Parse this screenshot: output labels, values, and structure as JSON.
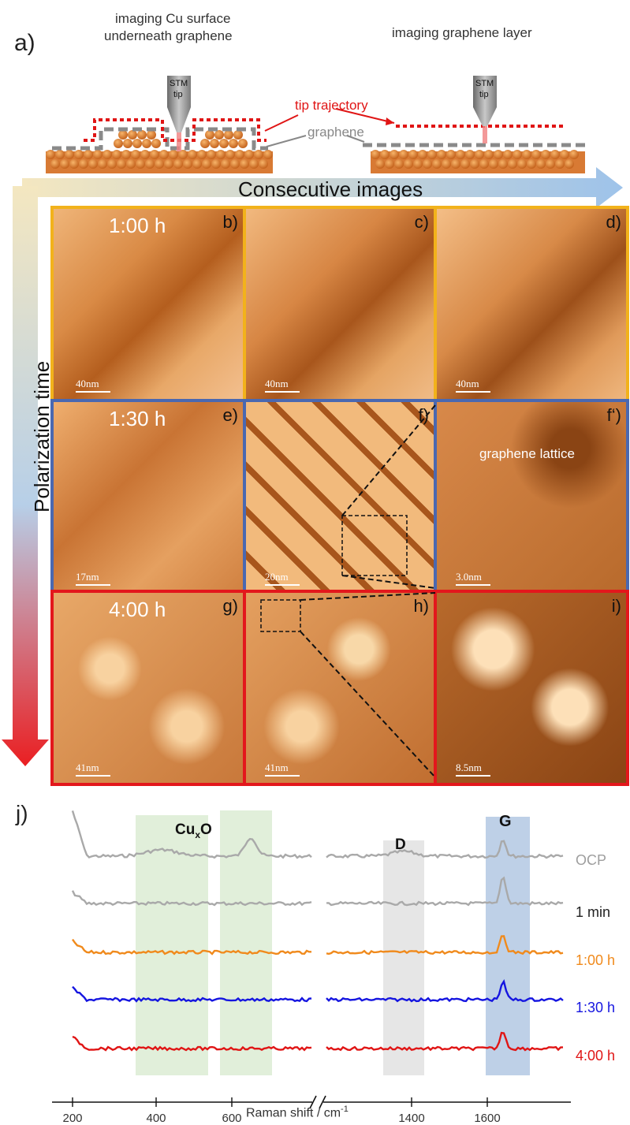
{
  "header": {
    "panel_label": "a)",
    "left_caption_line1": "imaging Cu surface",
    "left_caption_line2": "underneath graphene",
    "right_caption": "imaging graphene layer",
    "tip_label_1": "STM",
    "tip_label_2": "tip",
    "tip_trajectory": "tip trajectory",
    "graphene": "graphene"
  },
  "axes": {
    "consecutive": "Consecutive images",
    "polarization": "Polarization time"
  },
  "rows": [
    {
      "time": "1:00 h",
      "labels": [
        "b)",
        "c)",
        "d)"
      ],
      "scales": [
        "40nm",
        "40nm",
        "40nm"
      ],
      "frame_color": "#f2b21b"
    },
    {
      "time": "1:30 h",
      "labels": [
        "e)",
        "f)",
        "f‘)"
      ],
      "scales": [
        "17nm",
        "20nm",
        "3.0nm"
      ],
      "frame_color": "#4a68b0",
      "annotation": "graphene lattice"
    },
    {
      "time": "4:00 h",
      "labels": [
        "g)",
        "h)",
        "i)"
      ],
      "scales": [
        "41nm",
        "41nm",
        "8.5nm"
      ],
      "frame_color": "#e3171c"
    }
  ],
  "raman": {
    "panel_label": "j)",
    "cuxo_main": "Cu",
    "cuxo_sub": "x",
    "cuxo_tail": "O",
    "d_label": "D",
    "g_label": "G",
    "xlabel_main": "Raman shift / cm",
    "xlabel_sup": "-1",
    "ticks": [
      "200",
      "400",
      "600",
      "1400",
      "1600"
    ],
    "series": [
      {
        "name": "OCP",
        "color": "#9e9e9e"
      },
      {
        "name": "1 min",
        "color": "#222222"
      },
      {
        "name": "1:00 h",
        "color": "#f08a1c"
      },
      {
        "name": "1:30 h",
        "color": "#1515e0"
      },
      {
        "name": "4:00 h",
        "color": "#e01515"
      }
    ]
  }
}
